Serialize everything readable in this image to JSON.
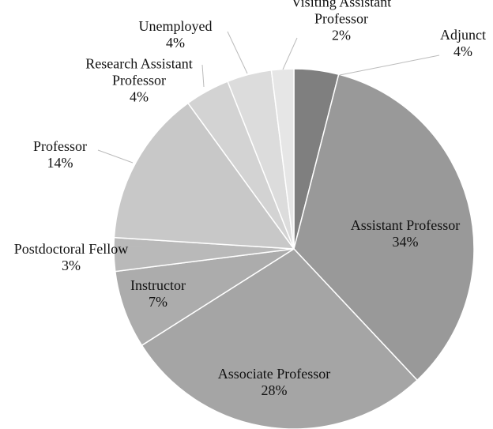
{
  "chart_data": {
    "type": "pie",
    "categories": [
      "Adjunct",
      "Assistant Professor",
      "Associate Professor",
      "Instructor",
      "Postdoctoral Fellow",
      "Professor",
      "Research Assistant Professor",
      "Unemployed",
      "Visiting Assistant Professor"
    ],
    "values": [
      4,
      34,
      28,
      7,
      3,
      14,
      4,
      4,
      2
    ],
    "value_labels": [
      "4%",
      "34%",
      "28%",
      "7%",
      "3%",
      "14%",
      "4%",
      "4%",
      "2%"
    ],
    "colors": [
      "#7f7f7f",
      "#999999",
      "#a5a5a5",
      "#acacac",
      "#b9b9b9",
      "#c8c8c8",
      "#d3d3d3",
      "#dcdcdc",
      "#e6e6e6"
    ]
  }
}
